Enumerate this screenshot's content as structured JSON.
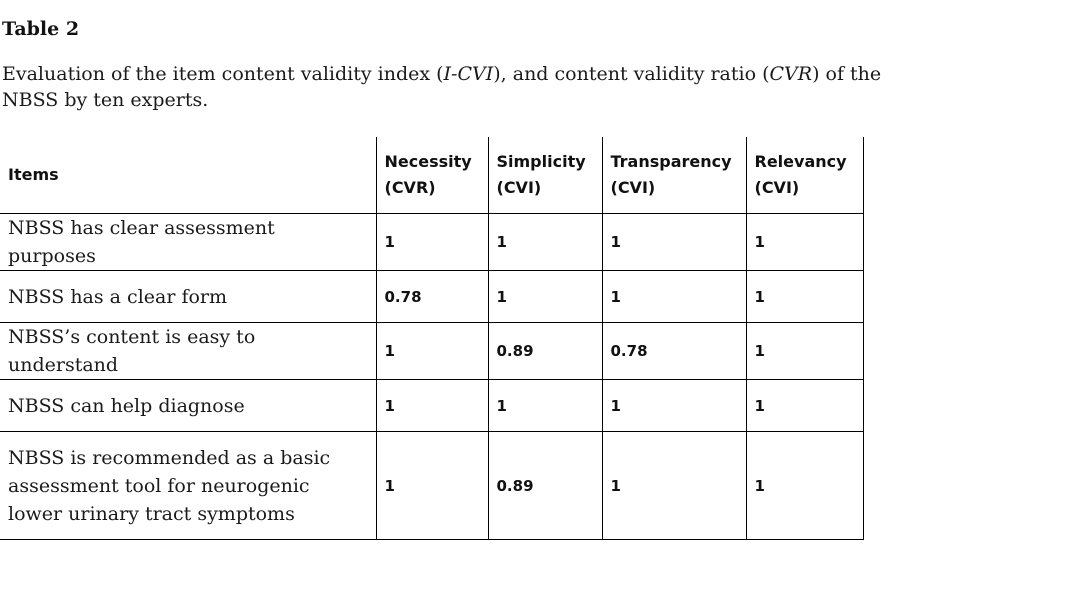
{
  "table_label": "Table 2",
  "caption": {
    "part1": "Evaluation of the item content validity index (",
    "abbr1": "I-CVI",
    "part2": "), and content validity ratio (",
    "abbr2": "CVR",
    "part3": ") of the NBSS by ten experts."
  },
  "table": {
    "headers": [
      {
        "line1": "Items",
        "line2": ""
      },
      {
        "line1": "Necessity",
        "line2": "(CVR)"
      },
      {
        "line1": "Simplicity",
        "line2": "(CVI)"
      },
      {
        "line1": "Transparency",
        "line2": "(CVI)"
      },
      {
        "line1": "Relevancy",
        "line2": "(CVI)"
      }
    ],
    "rows": [
      {
        "item": "NBSS has clear assessment purposes",
        "necessity": "1",
        "simplicity": "1",
        "transparency": "1",
        "relevancy": "1"
      },
      {
        "item": "NBSS has a clear form",
        "necessity": "0.78",
        "simplicity": "1",
        "transparency": "1",
        "relevancy": "1"
      },
      {
        "item": "NBSS’s content is easy to understand",
        "necessity": "1",
        "simplicity": "0.89",
        "transparency": "0.78",
        "relevancy": "1"
      },
      {
        "item": "NBSS can help diagnose",
        "necessity": "1",
        "simplicity": "1",
        "transparency": "1",
        "relevancy": "1"
      },
      {
        "item": "NBSS is recommended as a basic assessment tool for neurogenic lower urinary tract symptoms",
        "necessity": "1",
        "simplicity": "0.89",
        "transparency": "1",
        "relevancy": "1"
      }
    ]
  }
}
